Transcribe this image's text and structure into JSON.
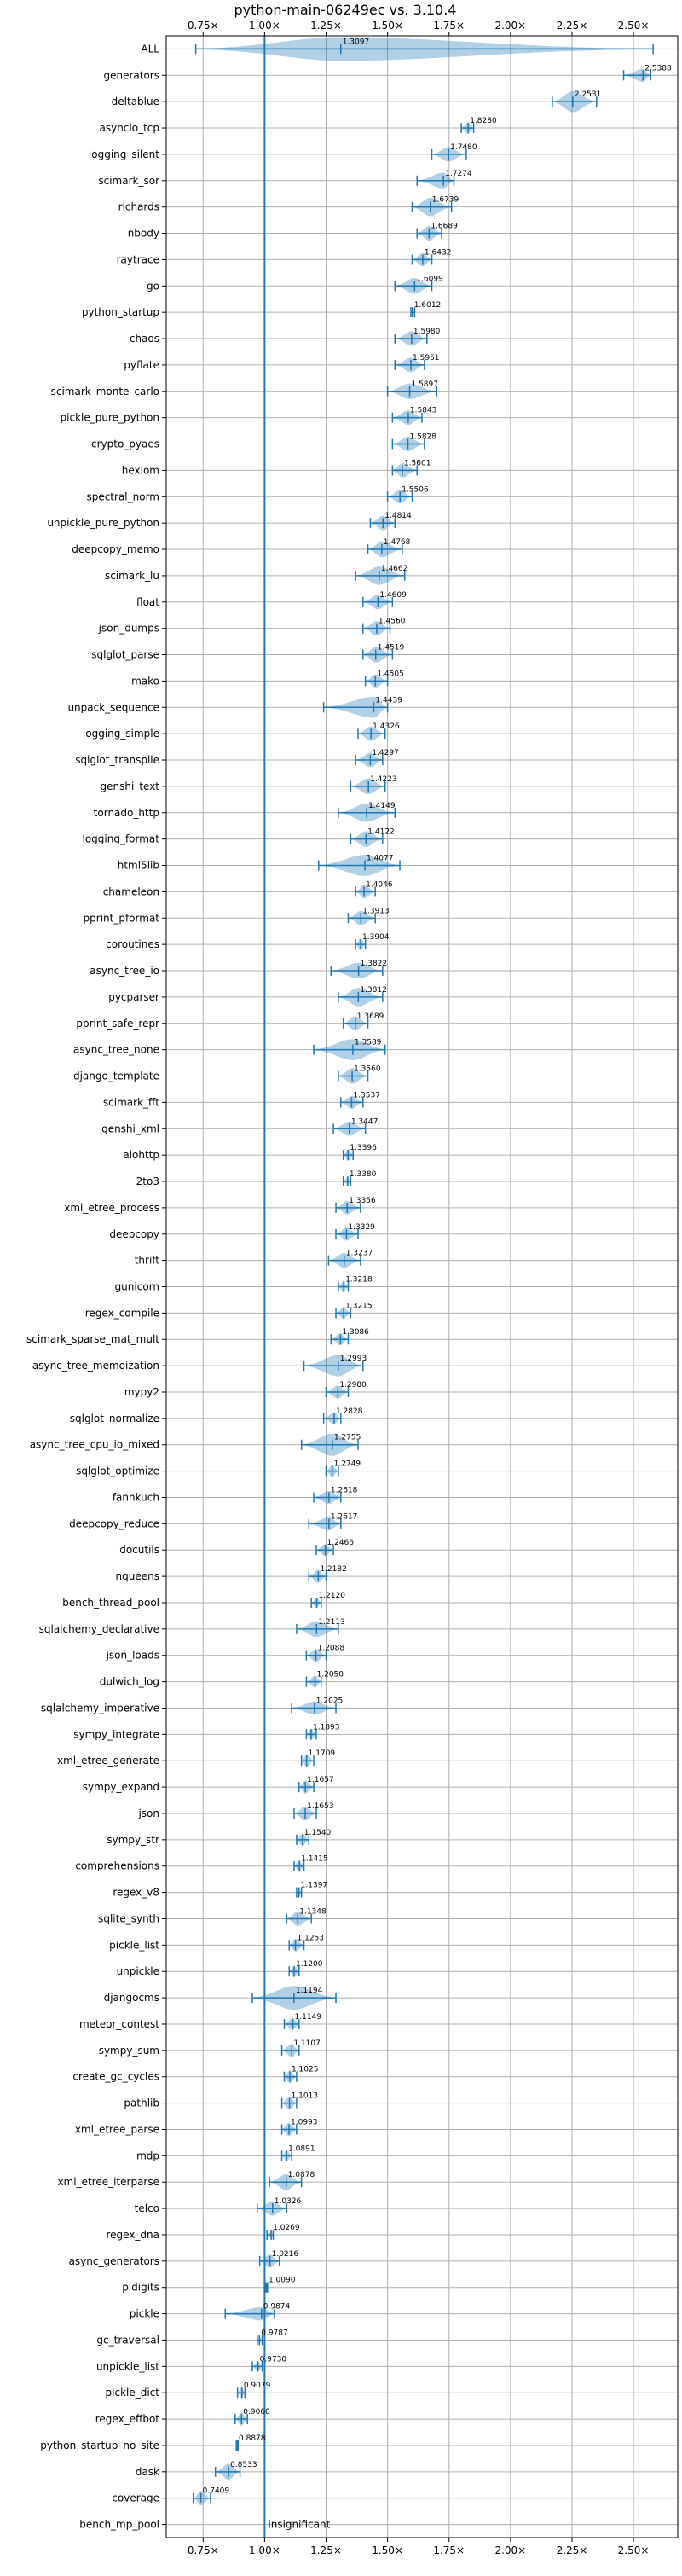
{
  "chart_data": {
    "type": "violin",
    "title": "python-main-06249ec vs. 3.10.4",
    "xlim": [
      0.6,
      2.68
    ],
    "x_ticks": [
      0.75,
      1.0,
      1.25,
      1.5,
      1.75,
      2.0,
      2.25,
      2.5
    ],
    "x_tick_labels": [
      "0.75×",
      "1.00×",
      "1.25×",
      "1.50×",
      "1.75×",
      "2.00×",
      "2.25×",
      "2.50×"
    ],
    "x_ticks_top": true,
    "grid": true,
    "reference_line": 1.0,
    "colors": {
      "violin": "#1f77b4",
      "grid": "#b0b0b0",
      "axis": "#000000"
    },
    "categories": [
      "ALL",
      "generators",
      "deltablue",
      "asyncio_tcp",
      "logging_silent",
      "scimark_sor",
      "richards",
      "nbody",
      "raytrace",
      "go",
      "python_startup",
      "chaos",
      "pyflate",
      "scimark_monte_carlo",
      "pickle_pure_python",
      "crypto_pyaes",
      "hexiom",
      "spectral_norm",
      "unpickle_pure_python",
      "deepcopy_memo",
      "scimark_lu",
      "float",
      "json_dumps",
      "sqlglot_parse",
      "mako",
      "unpack_sequence",
      "logging_simple",
      "sqlglot_transpile",
      "genshi_text",
      "tornado_http",
      "logging_format",
      "html5lib",
      "chameleon",
      "pprint_pformat",
      "coroutines",
      "async_tree_io",
      "pycparser",
      "pprint_safe_repr",
      "async_tree_none",
      "django_template",
      "scimark_fft",
      "genshi_xml",
      "aiohttp",
      "2to3",
      "xml_etree_process",
      "deepcopy",
      "thrift",
      "gunicorn",
      "regex_compile",
      "scimark_sparse_mat_mult",
      "async_tree_memoization",
      "mypy2",
      "sqlglot_normalize",
      "async_tree_cpu_io_mixed",
      "sqlglot_optimize",
      "fannkuch",
      "deepcopy_reduce",
      "docutils",
      "nqueens",
      "bench_thread_pool",
      "sqlalchemy_declarative",
      "json_loads",
      "dulwich_log",
      "sqlalchemy_imperative",
      "sympy_integrate",
      "xml_etree_generate",
      "sympy_expand",
      "json",
      "sympy_str",
      "comprehensions",
      "regex_v8",
      "sqlite_synth",
      "pickle_list",
      "unpickle",
      "djangocms",
      "meteor_contest",
      "sympy_sum",
      "create_gc_cycles",
      "pathlib",
      "xml_etree_parse",
      "mdp",
      "xml_etree_iterparse",
      "telco",
      "regex_dna",
      "async_generators",
      "pidigits",
      "pickle",
      "gc_traversal",
      "unpickle_list",
      "pickle_dict",
      "regex_effbot",
      "python_startup_no_site",
      "dask",
      "coverage",
      "bench_mp_pool"
    ],
    "values": [
      1.3097,
      2.5388,
      2.2531,
      1.828,
      1.748,
      1.7274,
      1.6739,
      1.6689,
      1.6432,
      1.6099,
      1.6012,
      1.598,
      1.5951,
      1.5897,
      1.5843,
      1.5828,
      1.5601,
      1.5506,
      1.4814,
      1.4768,
      1.4662,
      1.4609,
      1.456,
      1.4519,
      1.4505,
      1.4439,
      1.4326,
      1.4297,
      1.4223,
      1.4149,
      1.4122,
      1.4077,
      1.4046,
      1.3913,
      1.3904,
      1.3822,
      1.3812,
      1.3689,
      1.3589,
      1.356,
      1.3537,
      1.3447,
      1.3396,
      1.338,
      1.3356,
      1.3329,
      1.3237,
      1.3218,
      1.3215,
      1.3086,
      1.2993,
      1.298,
      1.2828,
      1.2755,
      1.2749,
      1.2618,
      1.2617,
      1.2466,
      1.2182,
      1.212,
      1.2113,
      1.2088,
      1.205,
      1.2025,
      1.1893,
      1.1709,
      1.1657,
      1.1653,
      1.154,
      1.1415,
      1.1397,
      1.1348,
      1.1253,
      1.12,
      1.1194,
      1.1149,
      1.1107,
      1.1025,
      1.1013,
      1.0993,
      1.0891,
      1.0878,
      1.0326,
      1.0269,
      1.0216,
      1.009,
      0.9874,
      0.9787,
      0.973,
      0.9079,
      0.906,
      0.8878,
      0.8533,
      0.7409,
      null
    ],
    "value_labels": [
      "1.3097",
      "2.5388",
      "2.2531",
      "1.8280",
      "1.7480",
      "1.7274",
      "1.6739",
      "1.6689",
      "1.6432",
      "1.6099",
      "1.6012",
      "1.5980",
      "1.5951",
      "1.5897",
      "1.5843",
      "1.5828",
      "1.5601",
      "1.5506",
      "1.4814",
      "1.4768",
      "1.4662",
      "1.4609",
      "1.4560",
      "1.4519",
      "1.4505",
      "1.4439",
      "1.4326",
      "1.4297",
      "1.4223",
      "1.4149",
      "1.4122",
      "1.4077",
      "1.4046",
      "1.3913",
      "1.3904",
      "1.3822",
      "1.3812",
      "1.3689",
      "1.3589",
      "1.3560",
      "1.3537",
      "1.3447",
      "1.3396",
      "1.3380",
      "1.3356",
      "1.3329",
      "1.3237",
      "1.3218",
      "1.3215",
      "1.3086",
      "1.2993",
      "1.2980",
      "1.2828",
      "1.2755",
      "1.2749",
      "1.2618",
      "1.2617",
      "1.2466",
      "1.2182",
      "1.2120",
      "1.2113",
      "1.2088",
      "1.2050",
      "1.2025",
      "1.1893",
      "1.1709",
      "1.1657",
      "1.1653",
      "1.1540",
      "1.1415",
      "1.1397",
      "1.1348",
      "1.1253",
      "1.1200",
      "1.1194",
      "1.1149",
      "1.1107",
      "1.1025",
      "1.1013",
      "1.0993",
      "1.0891",
      "1.0878",
      "1.0326",
      "1.0269",
      "1.0216",
      "1.0090",
      "0.9874",
      "0.9787",
      "0.9730",
      "0.9079",
      "0.9060",
      "0.8878",
      "0.8533",
      "0.7409",
      ""
    ],
    "spread_min": [
      0.72,
      2.46,
      2.17,
      1.8,
      1.68,
      1.62,
      1.6,
      1.62,
      1.6,
      1.53,
      1.595,
      1.53,
      1.53,
      1.5,
      1.52,
      1.52,
      1.52,
      1.5,
      1.43,
      1.42,
      1.37,
      1.4,
      1.4,
      1.4,
      1.41,
      1.24,
      1.38,
      1.37,
      1.35,
      1.3,
      1.35,
      1.22,
      1.37,
      1.34,
      1.37,
      1.27,
      1.3,
      1.32,
      1.2,
      1.3,
      1.31,
      1.28,
      1.32,
      1.32,
      1.29,
      1.29,
      1.26,
      1.3,
      1.29,
      1.27,
      1.16,
      1.25,
      1.24,
      1.15,
      1.25,
      1.2,
      1.18,
      1.21,
      1.18,
      1.19,
      1.13,
      1.17,
      1.17,
      1.11,
      1.17,
      1.15,
      1.14,
      1.12,
      1.13,
      1.12,
      1.13,
      1.09,
      1.1,
      1.1,
      0.95,
      1.08,
      1.07,
      1.08,
      1.07,
      1.07,
      1.07,
      1.02,
      0.97,
      1.01,
      0.98,
      1.005,
      0.84,
      0.97,
      0.95,
      0.89,
      0.88,
      0.885,
      0.8,
      0.71,
      null
    ],
    "spread_max": [
      2.58,
      2.57,
      2.35,
      1.85,
      1.82,
      1.77,
      1.76,
      1.72,
      1.68,
      1.68,
      1.61,
      1.66,
      1.65,
      1.7,
      1.64,
      1.65,
      1.62,
      1.6,
      1.53,
      1.56,
      1.57,
      1.52,
      1.51,
      1.52,
      1.5,
      1.5,
      1.49,
      1.48,
      1.49,
      1.53,
      1.48,
      1.55,
      1.45,
      1.45,
      1.41,
      1.48,
      1.48,
      1.42,
      1.49,
      1.42,
      1.4,
      1.41,
      1.36,
      1.35,
      1.39,
      1.38,
      1.39,
      1.34,
      1.35,
      1.34,
      1.4,
      1.34,
      1.31,
      1.38,
      1.3,
      1.31,
      1.31,
      1.28,
      1.25,
      1.23,
      1.3,
      1.25,
      1.23,
      1.29,
      1.21,
      1.2,
      1.2,
      1.21,
      1.18,
      1.16,
      1.15,
      1.19,
      1.16,
      1.14,
      1.29,
      1.14,
      1.14,
      1.13,
      1.13,
      1.13,
      1.11,
      1.15,
      1.09,
      1.035,
      1.06,
      1.012,
      1.04,
      0.99,
      0.99,
      0.92,
      0.93,
      0.892,
      0.9,
      0.78,
      null
    ],
    "spread_width": [
      0.9,
      0.5,
      0.8,
      0.45,
      0.55,
      0.6,
      0.7,
      0.55,
      0.5,
      0.6,
      0.2,
      0.55,
      0.55,
      0.6,
      0.55,
      0.55,
      0.55,
      0.5,
      0.55,
      0.6,
      0.7,
      0.55,
      0.55,
      0.6,
      0.5,
      0.8,
      0.55,
      0.55,
      0.6,
      0.7,
      0.6,
      0.8,
      0.5,
      0.55,
      0.5,
      0.6,
      0.7,
      0.55,
      0.8,
      0.6,
      0.5,
      0.55,
      0.45,
      0.35,
      0.5,
      0.5,
      0.55,
      0.45,
      0.45,
      0.45,
      0.8,
      0.5,
      0.45,
      0.85,
      0.45,
      0.5,
      0.5,
      0.45,
      0.5,
      0.4,
      0.6,
      0.5,
      0.45,
      0.5,
      0.45,
      0.5,
      0.5,
      0.55,
      0.5,
      0.45,
      0.35,
      0.55,
      0.5,
      0.45,
      0.9,
      0.45,
      0.5,
      0.5,
      0.5,
      0.5,
      0.45,
      0.6,
      0.55,
      0.3,
      0.5,
      0.2,
      0.5,
      0.3,
      0.4,
      0.45,
      0.5,
      0.2,
      0.6,
      0.55,
      0
    ],
    "annotations": [
      {
        "category": "bench_mp_pool",
        "text": "insignificant"
      }
    ]
  }
}
